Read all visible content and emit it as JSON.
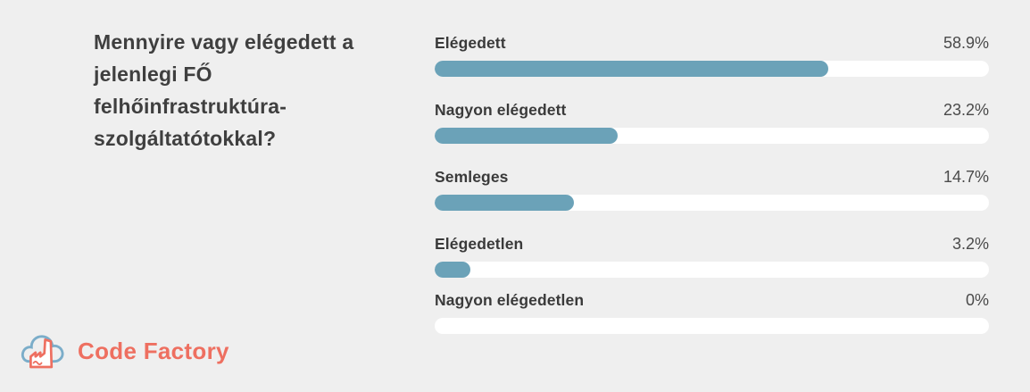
{
  "question": {
    "text": "Mennyire vagy elégedett a jelenlegi FŐ felhőinfrastruktúra-szolgáltatótokkal?",
    "lines": [
      "Mennyire vagy elégedett a",
      "jelenlegi FŐ",
      "felhőinfrastruktúra-",
      "szolgáltatótokkal?"
    ]
  },
  "chart_data": {
    "type": "bar",
    "orientation": "horizontal",
    "title": "Mennyire vagy elégedett a jelenlegi FŐ felhőinfrastruktúra-szolgáltatótokkal?",
    "categories": [
      "Elégedett",
      "Nagyon elégedett",
      "Semleges",
      "Elégedetlen",
      "Nagyon elégedetlen"
    ],
    "values": [
      58.9,
      23.2,
      14.7,
      3.2,
      0
    ],
    "unit": "%",
    "xlim": [
      0,
      100
    ],
    "grid": false,
    "legend": "none",
    "display_fill_pct": [
      71.0,
      33.0,
      25.1,
      6.4,
      0
    ],
    "rows": [
      {
        "label": "Elégedett",
        "value": "58.9%"
      },
      {
        "label": "Nagyon elégedett",
        "value": "23.2%"
      },
      {
        "label": "Semleges",
        "value": "14.7%"
      },
      {
        "label": "Elégedetlen",
        "value": "3.2%"
      },
      {
        "label": "Nagyon elégedetlen",
        "value": "0%"
      }
    ]
  },
  "branding": {
    "logo_text": "Code Factory",
    "logo_icon": "cloud-factory-icon"
  },
  "colors": {
    "background": "#efefef",
    "bar_fill": "#6ba2b8",
    "bar_track": "#ffffff",
    "question_text": "#3f3f3f",
    "label_text": "#3a3a3a",
    "value_text": "#4a4a4a",
    "brand_coral": "#ee6f60",
    "brand_blue": "#7badc9"
  }
}
